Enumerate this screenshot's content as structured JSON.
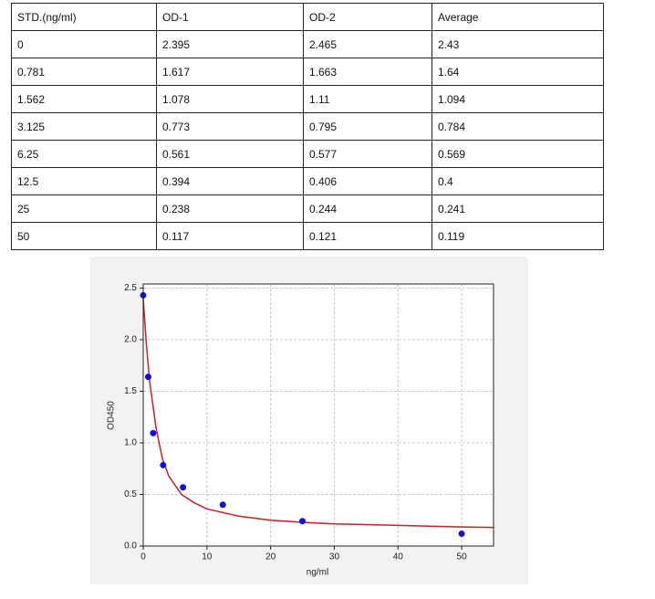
{
  "table": {
    "header": [
      "STD.(ng/ml)",
      "OD-1",
      "OD-2",
      "Average"
    ],
    "rows": [
      [
        "0",
        "2.395",
        "2.465",
        "2.43"
      ],
      [
        "0.781",
        "1.617",
        "1.663",
        "1.64"
      ],
      [
        "1.562",
        "1.078",
        "1.11",
        "1.094"
      ],
      [
        "3.125",
        "0.773",
        "0.795",
        "0.784"
      ],
      [
        "6.25",
        "0.561",
        "0.577",
        "0.569"
      ],
      [
        "12.5",
        "0.394",
        "0.406",
        "0.4"
      ],
      [
        "25",
        "0.238",
        "0.244",
        "0.241"
      ],
      [
        "50",
        "0.117",
        "0.121",
        "0.119"
      ]
    ]
  },
  "chart_data": {
    "type": "scatter",
    "x_label": "ng/ml",
    "y_label": "OD450",
    "series": [
      {
        "color": "#1010d8",
        "x": [
          0,
          0.781,
          1.562,
          3.125,
          6.25,
          12.5,
          25,
          50
        ],
        "values": [
          2.43,
          1.64,
          1.094,
          0.784,
          0.569,
          0.4,
          0.241,
          0.119
        ]
      },
      {
        "type": "line",
        "color": "#cc1f1f",
        "x": [
          0,
          0.5,
          1,
          2,
          3,
          4,
          6,
          8,
          10,
          15,
          20,
          25,
          30,
          40,
          50,
          55
        ],
        "values": [
          2.4,
          1.95,
          1.6,
          1.15,
          0.85,
          0.68,
          0.5,
          0.42,
          0.36,
          0.29,
          0.25,
          0.23,
          0.215,
          0.2,
          0.185,
          0.18
        ]
      }
    ],
    "xlim": [
      0,
      55
    ],
    "xticks": [
      0,
      10,
      20,
      30,
      40,
      50
    ],
    "ylim": [
      0,
      2.54
    ],
    "yticks": [
      {
        "value": 0,
        "label": "0.0"
      },
      0.5,
      {
        "value": 1,
        "label": "1.0"
      },
      1.5,
      {
        "value": 2,
        "label": "2.0"
      },
      2.5
    ],
    "grid": true
  }
}
